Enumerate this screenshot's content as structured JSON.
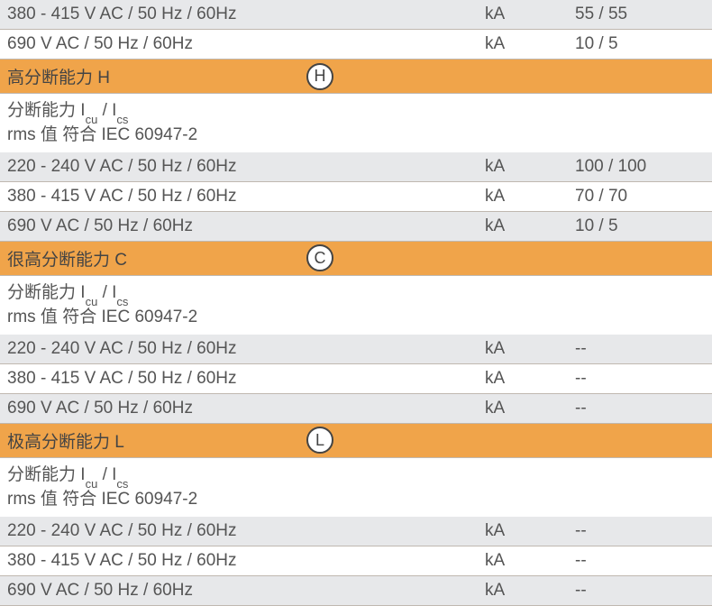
{
  "colors": {
    "row_grey": "#e7e8ea",
    "row_white": "#ffffff",
    "row_orange": "#f0a44a",
    "border": "#c0b8b0",
    "text": "#555555"
  },
  "top_rows": [
    {
      "bg": "grey",
      "label": "380 - 415 V AC / 50 Hz / 60Hz",
      "unit": "kA",
      "value": "55 / 55"
    },
    {
      "bg": "white",
      "label": "690 V AC / 50 Hz / 60Hz",
      "unit": "kA",
      "value": "10 / 5"
    }
  ],
  "sections": [
    {
      "header": "高分断能力 H",
      "badge": "H",
      "desc_line1_pre": "分断能力 I",
      "desc_line1_sub1": "cu",
      "desc_line1_mid": " / I",
      "desc_line1_sub2": "cs",
      "desc_line2": "rms 值 符合 IEC 60947-2",
      "rows": [
        {
          "bg": "grey",
          "label": "220 - 240 V AC / 50 Hz / 60Hz",
          "unit": "kA",
          "value": "100 / 100"
        },
        {
          "bg": "white",
          "label": "380 - 415 V AC / 50 Hz / 60Hz",
          "unit": "kA",
          "value": "70 / 70"
        },
        {
          "bg": "grey",
          "label": "690 V AC / 50 Hz / 60Hz",
          "unit": "kA",
          "value": "10 / 5"
        }
      ]
    },
    {
      "header": "很高分断能力 C",
      "badge": "C",
      "desc_line1_pre": "分断能力 I",
      "desc_line1_sub1": "cu",
      "desc_line1_mid": " / I",
      "desc_line1_sub2": "cs",
      "desc_line2": "rms 值 符合 IEC 60947-2",
      "rows": [
        {
          "bg": "grey",
          "label": "220 - 240 V AC / 50 Hz / 60Hz",
          "unit": "kA",
          "value": "--"
        },
        {
          "bg": "white",
          "label": "380 - 415 V AC / 50 Hz / 60Hz",
          "unit": "kA",
          "value": "--"
        },
        {
          "bg": "grey",
          "label": "690 V AC / 50 Hz / 60Hz",
          "unit": "kA",
          "value": "--"
        }
      ]
    },
    {
      "header": "极高分断能力 L",
      "badge": "L",
      "desc_line1_pre": "分断能力 I",
      "desc_line1_sub1": "cu",
      "desc_line1_mid": " / I",
      "desc_line1_sub2": "cs",
      "desc_line2": "rms 值 符合 IEC 60947-2",
      "rows": [
        {
          "bg": "grey",
          "label": "220 - 240 V AC / 50 Hz / 60Hz",
          "unit": "kA",
          "value": "--"
        },
        {
          "bg": "white",
          "label": "380 - 415 V AC / 50 Hz / 60Hz",
          "unit": "kA",
          "value": "--"
        },
        {
          "bg": "grey",
          "label": "690 V AC / 50 Hz / 60Hz",
          "unit": "kA",
          "value": "--"
        }
      ]
    }
  ]
}
